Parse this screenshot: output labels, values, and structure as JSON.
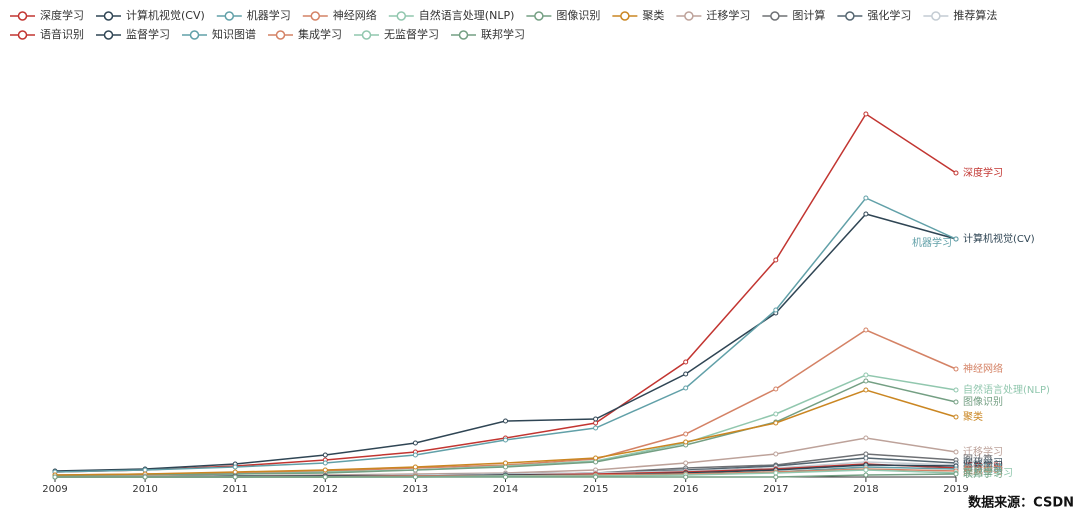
{
  "chart_data": {
    "type": "line",
    "source": "数据来源：CSDN",
    "x": [
      2009,
      2010,
      2011,
      2012,
      2013,
      2014,
      2015,
      2016,
      2017,
      2018,
      2019
    ],
    "xlim": [
      2009,
      2019
    ],
    "xticks": [
      2009,
      2010,
      2011,
      2012,
      2013,
      2014,
      2015,
      2016,
      2017,
      2018,
      2019
    ],
    "ylim": [
      0,
      370
    ],
    "grid": false,
    "legend": "top",
    "series": [
      {
        "name": "深度学习",
        "color": "#c23531",
        "values": [
          5,
          7,
          11,
          17,
          25,
          39,
          54,
          115,
          217,
          363,
          304
        ]
      },
      {
        "name": "计算机视觉(CV)",
        "color": "#2f4554",
        "values": [
          6,
          8,
          13,
          22,
          34,
          56,
          58,
          103,
          164,
          263,
          238
        ]
      },
      {
        "name": "机器学习",
        "color": "#61a0a8",
        "values": [
          5,
          7,
          10,
          14,
          22,
          37,
          49,
          89,
          167,
          279,
          238
        ]
      },
      {
        "name": "神经网络",
        "color": "#d48265",
        "values": [
          2,
          3,
          4,
          6,
          9,
          12,
          18,
          43,
          88,
          147,
          108
        ]
      },
      {
        "name": "自然语言处理(NLP)",
        "color": "#91c7ae",
        "values": [
          1,
          2,
          3,
          5,
          7,
          11,
          16,
          34,
          63,
          102,
          87
        ]
      },
      {
        "name": "图像识别",
        "color": "#749f83",
        "values": [
          1,
          2,
          3,
          4,
          7,
          10,
          15,
          32,
          55,
          96,
          75
        ]
      },
      {
        "name": "聚类",
        "color": "#ca8622",
        "values": [
          2,
          3,
          5,
          7,
          10,
          14,
          19,
          35,
          54,
          87,
          60
        ]
      },
      {
        "name": "迁移学习",
        "color": "#bda29a",
        "values": [
          0,
          1,
          1,
          2,
          3,
          4,
          7,
          14,
          23,
          39,
          25
        ]
      },
      {
        "name": "图计算",
        "color": "#6e7074",
        "values": [
          0,
          0,
          1,
          1,
          2,
          3,
          4,
          9,
          12,
          23,
          17
        ]
      },
      {
        "name": "强化学习",
        "color": "#546570",
        "values": [
          0,
          0,
          1,
          1,
          2,
          3,
          4,
          7,
          11,
          19,
          14
        ]
      },
      {
        "name": "推荐算法",
        "color": "#c4ccd3",
        "values": [
          0,
          0,
          0,
          1,
          2,
          3,
          4,
          6,
          9,
          15,
          12
        ]
      },
      {
        "name": "语音识别",
        "color": "#c23531",
        "values": [
          0,
          0,
          0,
          1,
          1,
          2,
          3,
          5,
          8,
          13,
          9
        ]
      },
      {
        "name": "监督学习",
        "color": "#2f4554",
        "values": [
          0,
          0,
          0,
          1,
          1,
          2,
          2,
          4,
          7,
          12,
          11
        ]
      },
      {
        "name": "知识图谱",
        "color": "#61a0a8",
        "values": [
          0,
          0,
          0,
          0,
          1,
          1,
          2,
          3,
          5,
          10,
          8
        ]
      },
      {
        "name": "集成学习",
        "color": "#d48265",
        "values": [
          0,
          0,
          0,
          0,
          1,
          1,
          2,
          3,
          5,
          8,
          6
        ]
      },
      {
        "name": "无监督学习",
        "color": "#91c7ae",
        "values": [
          0,
          0,
          0,
          0,
          0,
          1,
          1,
          2,
          4,
          7,
          4
        ]
      },
      {
        "name": "联邦学习",
        "color": "#749f83",
        "values": [
          0,
          0,
          0,
          0,
          0,
          0,
          0,
          0,
          0,
          2,
          3
        ]
      }
    ]
  }
}
